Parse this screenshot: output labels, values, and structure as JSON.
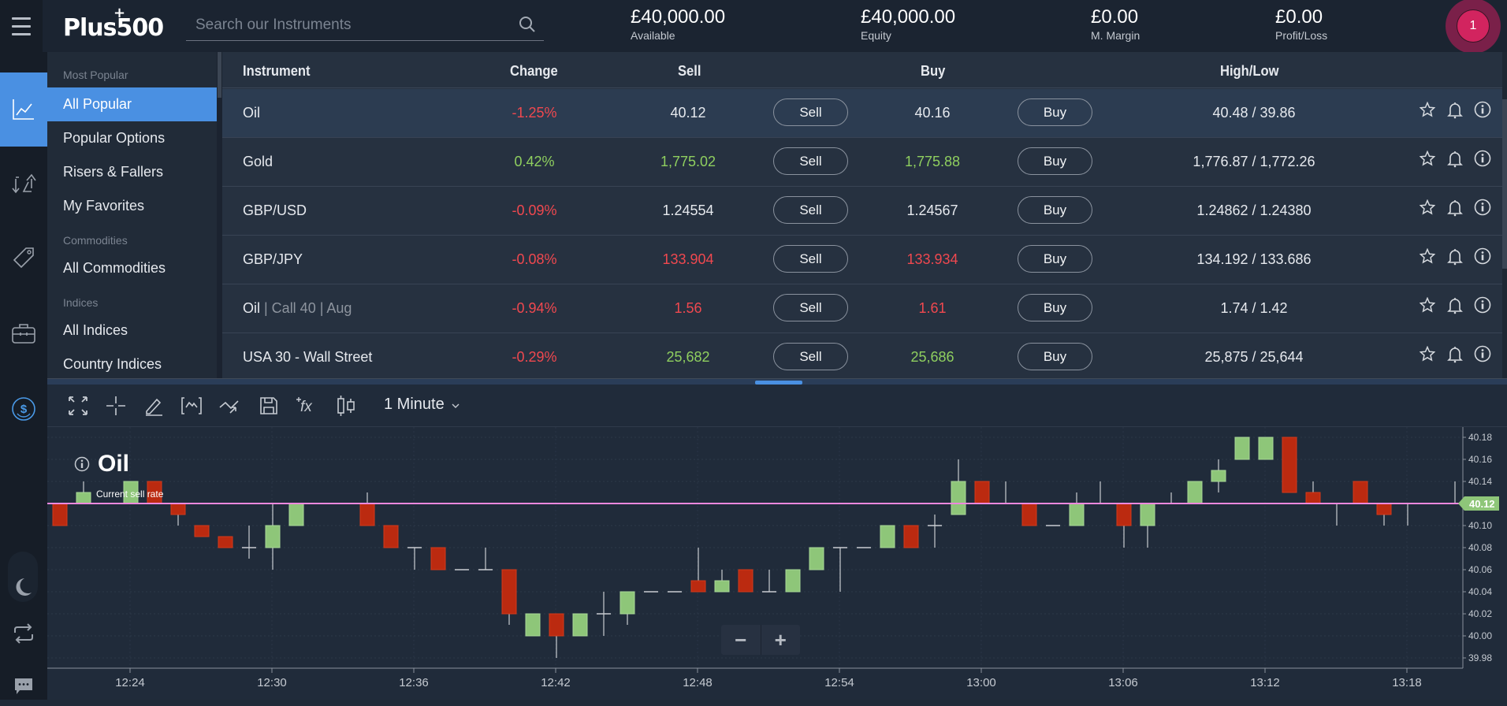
{
  "header": {
    "logo": "Plus500",
    "logo_plus": "+",
    "search": {
      "placeholder": "Search our Instruments",
      "value": ""
    },
    "stats": [
      {
        "value": "£40,000.00",
        "label": "Available"
      },
      {
        "value": "£40,000.00",
        "label": "Equity"
      },
      {
        "value": "£0.00",
        "label": "M. Margin"
      },
      {
        "value": "£0.00",
        "label": "Profit/Loss"
      }
    ],
    "avatar_badge": "1"
  },
  "leftnav": {
    "items": [
      {
        "name": "trade",
        "icon": "chart-line-icon",
        "active": true
      },
      {
        "name": "positions",
        "icon": "position-arrows-icon",
        "active": false
      },
      {
        "name": "orders",
        "icon": "price-tag-icon",
        "active": false
      },
      {
        "name": "portfolio",
        "icon": "briefcase-icon",
        "active": false
      },
      {
        "name": "funds",
        "icon": "dollar-circle-icon",
        "active": false
      }
    ],
    "bottom": [
      {
        "name": "theme-toggle",
        "icon": "moon-icon"
      },
      {
        "name": "switch-account",
        "icon": "swap-arrows-icon"
      },
      {
        "name": "chat",
        "icon": "chat-bubble-icon"
      }
    ]
  },
  "categories": {
    "groups": [
      {
        "header": "Most Popular",
        "items": [
          "All Popular",
          "Popular Options",
          "Risers & Fallers",
          "My Favorites"
        ]
      },
      {
        "header": "Commodities",
        "items": [
          "All Commodities"
        ]
      },
      {
        "header": "Indices",
        "items": [
          "All Indices",
          "Country Indices"
        ]
      }
    ],
    "active": "All Popular"
  },
  "table": {
    "columns": [
      "Instrument",
      "Change",
      "Sell",
      "Buy",
      "High/Low"
    ],
    "sell_label": "Sell",
    "buy_label": "Buy",
    "rows": [
      {
        "instrument": "Oil",
        "sub": "",
        "change": "-1.25%",
        "change_dir": "down",
        "sell": "40.12",
        "sell_dir": "neutral",
        "buy": "40.16",
        "buy_dir": "neutral",
        "highlow": "40.48 / 39.86",
        "selected": true
      },
      {
        "instrument": "Gold",
        "sub": "",
        "change": "0.42%",
        "change_dir": "up",
        "sell": "1,775.02",
        "sell_dir": "up",
        "buy": "1,775.88",
        "buy_dir": "up",
        "highlow": "1,776.87 / 1,772.26",
        "selected": false
      },
      {
        "instrument": "GBP/USD",
        "sub": "",
        "change": "-0.09%",
        "change_dir": "down",
        "sell": "1.24554",
        "sell_dir": "neutral",
        "buy": "1.24567",
        "buy_dir": "neutral",
        "highlow": "1.24862 / 1.24380",
        "selected": false
      },
      {
        "instrument": "GBP/JPY",
        "sub": "",
        "change": "-0.08%",
        "change_dir": "down",
        "sell": "133.904",
        "sell_dir": "down",
        "buy": "133.934",
        "buy_dir": "down",
        "highlow": "134.192 / 133.686",
        "selected": false
      },
      {
        "instrument": "Oil",
        "sub": " | Call 40 | Aug",
        "change": "-0.94%",
        "change_dir": "down",
        "sell": "1.56",
        "sell_dir": "down",
        "buy": "1.61",
        "buy_dir": "down",
        "highlow": "1.74 / 1.42",
        "selected": false
      },
      {
        "instrument": "USA 30 - Wall Street",
        "sub": "",
        "change": "-0.29%",
        "change_dir": "down",
        "sell": "25,682",
        "sell_dir": "up",
        "buy": "25,686",
        "buy_dir": "up",
        "highlow": "25,875 / 25,644",
        "selected": false
      }
    ]
  },
  "chart": {
    "toolbar": {
      "tools": [
        "fullscreen-icon",
        "crosshair-icon",
        "draw-pencil-icon",
        "indicator-bracket-icon",
        "trend-arrow-icon",
        "save-icon",
        "function-fx-icon",
        "candlestick-type-icon"
      ],
      "timeframe": "1 Minute"
    },
    "title": "Oil",
    "current_rate_label": "Current sell rate",
    "current_rate": "40.12",
    "zoom_out": "−",
    "zoom_in": "+"
  },
  "colors": {
    "accent": "#4a90e2",
    "up": "#8fcf5f",
    "down": "#f0484f",
    "candle_up": "#8ec679",
    "candle_down": "#bb2a10",
    "rate_line": "#ee88dd",
    "badge": "#d2245f"
  },
  "chart_data": {
    "type": "candlestick",
    "title": "Oil",
    "interval": "1 Minute",
    "y_ticks": [
      "40.18",
      "40.16",
      "40.14",
      "40.12",
      "40.10",
      "40.08",
      "40.06",
      "40.04",
      "40.02",
      "40.00",
      "39.98"
    ],
    "ylim": [
      39.975,
      40.19
    ],
    "x_ticks": [
      "12:24",
      "12:30",
      "12:36",
      "12:42",
      "12:48",
      "12:54",
      "13:00",
      "13:06",
      "13:12",
      "13:18"
    ],
    "current_sell_rate": 40.12,
    "candles": [
      {
        "t": "12:21",
        "o": 40.12,
        "h": 40.12,
        "l": 40.1,
        "c": 40.1
      },
      {
        "t": "12:22",
        "o": 40.12,
        "h": 40.14,
        "l": 40.12,
        "c": 40.13
      },
      {
        "t": "12:23",
        "o": 40.12,
        "h": 40.12,
        "l": 40.12,
        "c": 40.12
      },
      {
        "t": "12:24",
        "o": 40.12,
        "h": 40.14,
        "l": 40.12,
        "c": 40.14
      },
      {
        "t": "12:25",
        "o": 40.14,
        "h": 40.14,
        "l": 40.12,
        "c": 40.12
      },
      {
        "t": "12:26",
        "o": 40.12,
        "h": 40.12,
        "l": 40.1,
        "c": 40.11
      },
      {
        "t": "12:27",
        "o": 40.1,
        "h": 40.1,
        "l": 40.09,
        "c": 40.09
      },
      {
        "t": "12:28",
        "o": 40.09,
        "h": 40.09,
        "l": 40.08,
        "c": 40.08
      },
      {
        "t": "12:29",
        "o": 40.08,
        "h": 40.1,
        "l": 40.07,
        "c": 40.08
      },
      {
        "t": "12:30",
        "o": 40.08,
        "h": 40.12,
        "l": 40.06,
        "c": 40.1
      },
      {
        "t": "12:31",
        "o": 40.1,
        "h": 40.12,
        "l": 40.1,
        "c": 40.12
      },
      {
        "t": "12:32",
        "o": 40.12,
        "h": 40.12,
        "l": 40.12,
        "c": 40.12
      },
      {
        "t": "12:33",
        "o": 40.12,
        "h": 40.12,
        "l": 40.12,
        "c": 40.12
      },
      {
        "t": "12:34",
        "o": 40.12,
        "h": 40.13,
        "l": 40.1,
        "c": 40.1
      },
      {
        "t": "12:35",
        "o": 40.1,
        "h": 40.1,
        "l": 40.08,
        "c": 40.08
      },
      {
        "t": "12:36",
        "o": 40.08,
        "h": 40.08,
        "l": 40.06,
        "c": 40.08
      },
      {
        "t": "12:37",
        "o": 40.08,
        "h": 40.08,
        "l": 40.06,
        "c": 40.06
      },
      {
        "t": "12:38",
        "o": 40.06,
        "h": 40.06,
        "l": 40.06,
        "c": 40.06
      },
      {
        "t": "12:39",
        "o": 40.06,
        "h": 40.08,
        "l": 40.06,
        "c": 40.06
      },
      {
        "t": "12:40",
        "o": 40.06,
        "h": 40.06,
        "l": 40.01,
        "c": 40.02
      },
      {
        "t": "12:41",
        "o": 40.0,
        "h": 40.02,
        "l": 40.0,
        "c": 40.02
      },
      {
        "t": "12:42",
        "o": 40.02,
        "h": 40.02,
        "l": 39.98,
        "c": 40.0
      },
      {
        "t": "12:43",
        "o": 40.0,
        "h": 40.02,
        "l": 40.0,
        "c": 40.02
      },
      {
        "t": "12:44",
        "o": 40.02,
        "h": 40.04,
        "l": 40.0,
        "c": 40.02
      },
      {
        "t": "12:45",
        "o": 40.02,
        "h": 40.04,
        "l": 40.01,
        "c": 40.04
      },
      {
        "t": "12:46",
        "o": 40.04,
        "h": 40.04,
        "l": 40.04,
        "c": 40.04
      },
      {
        "t": "12:47",
        "o": 40.04,
        "h": 40.04,
        "l": 40.04,
        "c": 40.04
      },
      {
        "t": "12:48",
        "o": 40.05,
        "h": 40.08,
        "l": 40.04,
        "c": 40.04
      },
      {
        "t": "12:49",
        "o": 40.04,
        "h": 40.06,
        "l": 40.04,
        "c": 40.05
      },
      {
        "t": "12:50",
        "o": 40.06,
        "h": 40.06,
        "l": 40.04,
        "c": 40.04
      },
      {
        "t": "12:51",
        "o": 40.04,
        "h": 40.06,
        "l": 40.04,
        "c": 40.04
      },
      {
        "t": "12:52",
        "o": 40.04,
        "h": 40.06,
        "l": 40.04,
        "c": 40.06
      },
      {
        "t": "12:53",
        "o": 40.06,
        "h": 40.08,
        "l": 40.06,
        "c": 40.08
      },
      {
        "t": "12:54",
        "o": 40.08,
        "h": 40.08,
        "l": 40.04,
        "c": 40.08
      },
      {
        "t": "12:55",
        "o": 40.08,
        "h": 40.08,
        "l": 40.08,
        "c": 40.08
      },
      {
        "t": "12:56",
        "o": 40.08,
        "h": 40.1,
        "l": 40.08,
        "c": 40.1
      },
      {
        "t": "12:57",
        "o": 40.1,
        "h": 40.1,
        "l": 40.08,
        "c": 40.08
      },
      {
        "t": "12:58",
        "o": 40.1,
        "h": 40.11,
        "l": 40.08,
        "c": 40.1
      },
      {
        "t": "12:59",
        "o": 40.11,
        "h": 40.16,
        "l": 40.11,
        "c": 40.14
      },
      {
        "t": "13:00",
        "o": 40.14,
        "h": 40.14,
        "l": 40.12,
        "c": 40.12
      },
      {
        "t": "13:01",
        "o": 40.12,
        "h": 40.14,
        "l": 40.12,
        "c": 40.12
      },
      {
        "t": "13:02",
        "o": 40.12,
        "h": 40.12,
        "l": 40.1,
        "c": 40.1
      },
      {
        "t": "13:03",
        "o": 40.1,
        "h": 40.1,
        "l": 40.1,
        "c": 40.1
      },
      {
        "t": "13:04",
        "o": 40.1,
        "h": 40.13,
        "l": 40.1,
        "c": 40.12
      },
      {
        "t": "13:05",
        "o": 40.12,
        "h": 40.14,
        "l": 40.12,
        "c": 40.12
      },
      {
        "t": "13:06",
        "o": 40.12,
        "h": 40.12,
        "l": 40.08,
        "c": 40.1
      },
      {
        "t": "13:07",
        "o": 40.1,
        "h": 40.12,
        "l": 40.08,
        "c": 40.12
      },
      {
        "t": "13:08",
        "o": 40.12,
        "h": 40.13,
        "l": 40.12,
        "c": 40.12
      },
      {
        "t": "13:09",
        "o": 40.12,
        "h": 40.14,
        "l": 40.12,
        "c": 40.14
      },
      {
        "t": "13:10",
        "o": 40.14,
        "h": 40.16,
        "l": 40.13,
        "c": 40.15
      },
      {
        "t": "13:11",
        "o": 40.16,
        "h": 40.18,
        "l": 40.16,
        "c": 40.18
      },
      {
        "t": "13:12",
        "o": 40.16,
        "h": 40.18,
        "l": 40.16,
        "c": 40.18
      },
      {
        "t": "13:13",
        "o": 40.18,
        "h": 40.18,
        "l": 40.13,
        "c": 40.13
      },
      {
        "t": "13:14",
        "o": 40.13,
        "h": 40.14,
        "l": 40.12,
        "c": 40.12
      },
      {
        "t": "13:15",
        "o": 40.12,
        "h": 40.12,
        "l": 40.1,
        "c": 40.12
      },
      {
        "t": "13:16",
        "o": 40.14,
        "h": 40.14,
        "l": 40.12,
        "c": 40.12
      },
      {
        "t": "13:17",
        "o": 40.12,
        "h": 40.12,
        "l": 40.1,
        "c": 40.11
      },
      {
        "t": "13:18",
        "o": 40.12,
        "h": 40.12,
        "l": 40.1,
        "c": 40.12
      },
      {
        "t": "13:19",
        "o": 40.12,
        "h": 40.12,
        "l": 40.12,
        "c": 40.12
      },
      {
        "t": "13:20",
        "o": 40.12,
        "h": 40.14,
        "l": 40.12,
        "c": 40.12
      }
    ]
  }
}
